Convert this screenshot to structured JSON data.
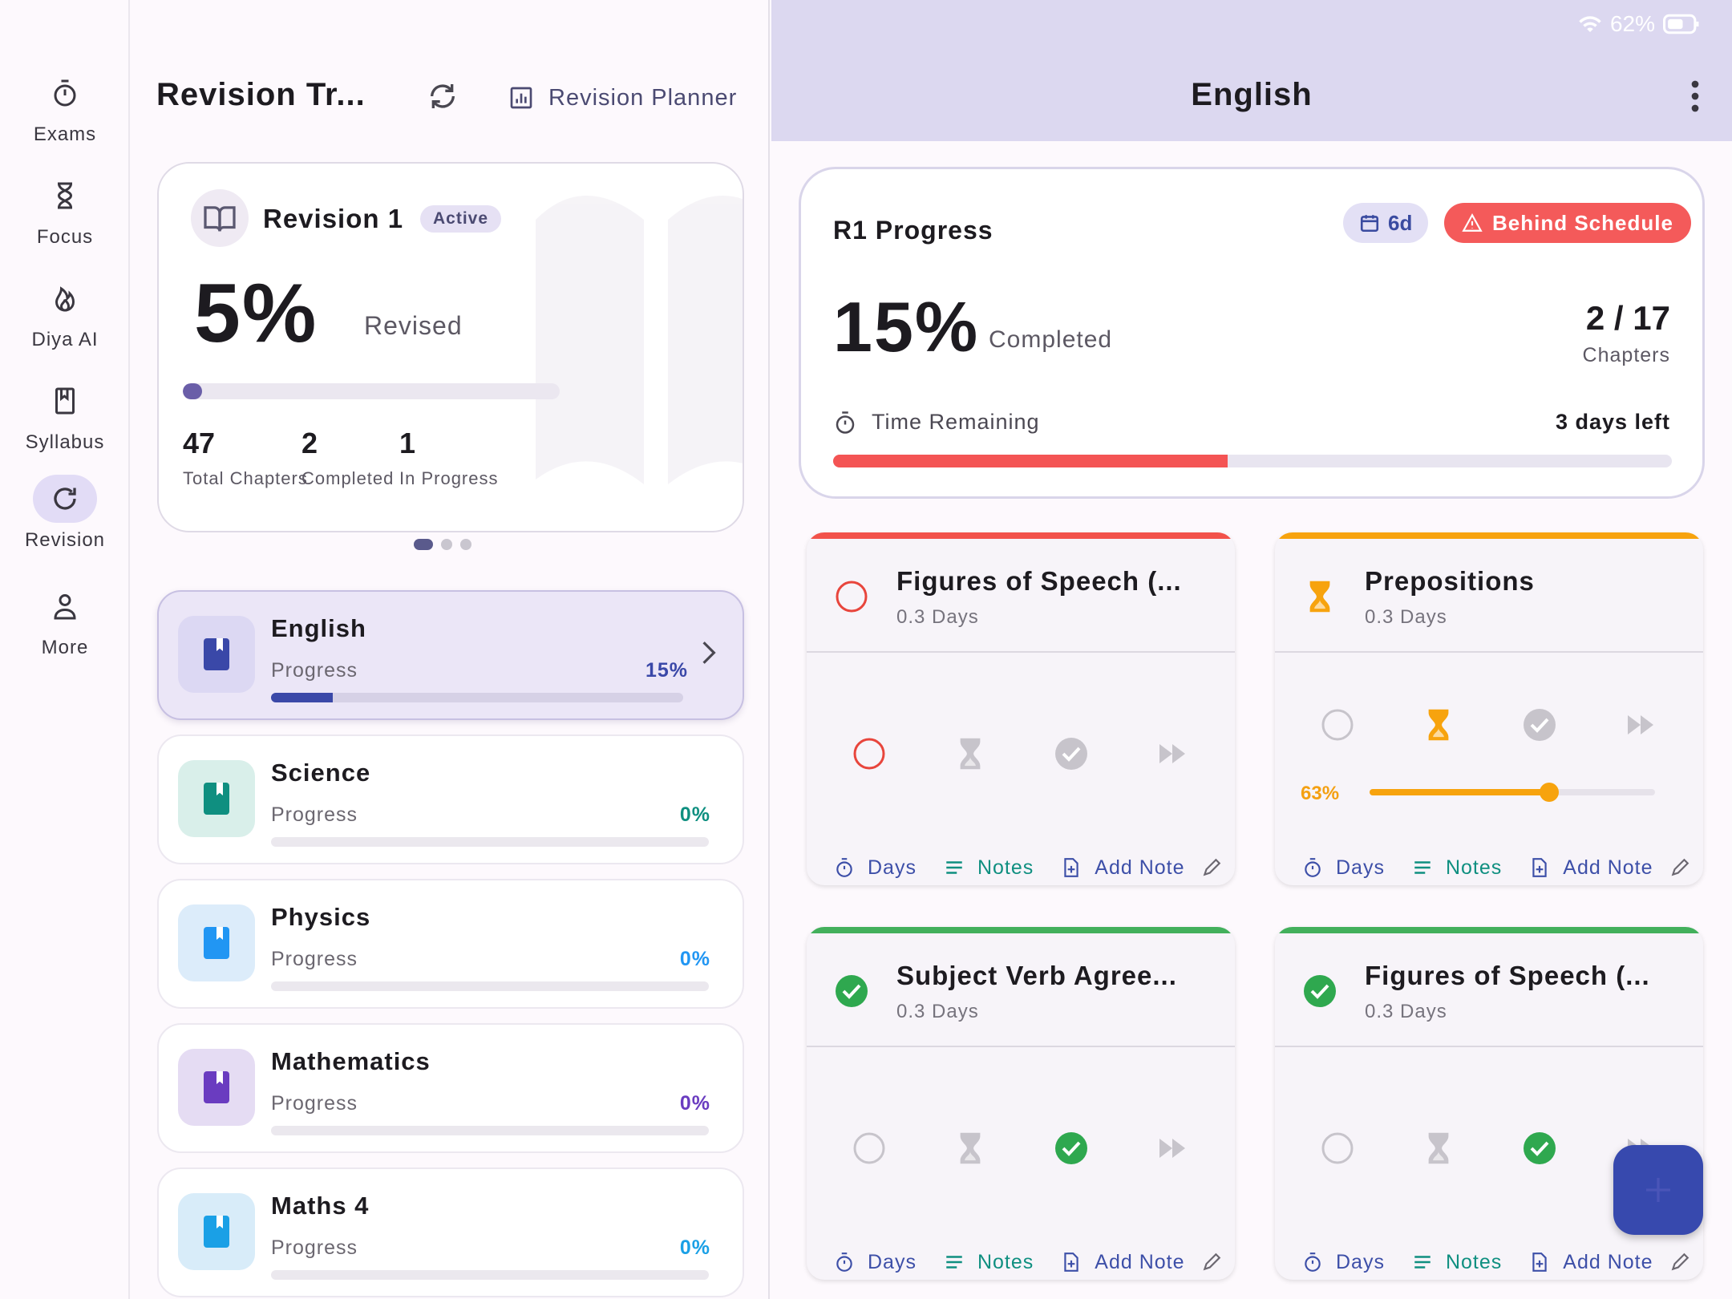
{
  "colors": {
    "accent": "#3749ae",
    "danger": "#f45a5a",
    "warning": "#f7a30e",
    "success": "#2fa84f",
    "teal": "#0f8f80"
  },
  "status": {
    "battery": "62%"
  },
  "rail": [
    {
      "label": "Exams",
      "icon": "stopwatch-icon"
    },
    {
      "label": "Focus",
      "icon": "hourglass-icon"
    },
    {
      "label": "Diya AI",
      "icon": "flame-icon"
    },
    {
      "label": "Syllabus",
      "icon": "bookmark-book-icon"
    },
    {
      "label": "Revision",
      "icon": "refresh-icon",
      "active": true
    },
    {
      "label": "More",
      "icon": "person-icon"
    }
  ],
  "left": {
    "title": "Revision Tr...",
    "planner": "Revision Planner",
    "revision": {
      "name": "Revision 1",
      "badge": "Active",
      "percent": "5%",
      "percent_label": "Revised",
      "progress": 0.05,
      "stats": [
        {
          "value": "47",
          "label": "Total Chapters"
        },
        {
          "value": "2",
          "label": "Completed"
        },
        {
          "value": "1",
          "label": "In Progress"
        }
      ]
    },
    "subjects": [
      {
        "name": "English",
        "label": "Progress",
        "pct": "15%",
        "progress": 0.15,
        "color": "#3a48a8",
        "bg": "#dcd8f3",
        "selected": true
      },
      {
        "name": "Science",
        "label": "Progress",
        "pct": "0%",
        "progress": 0,
        "color": "#0f8f80",
        "bg": "#d9efea"
      },
      {
        "name": "Physics",
        "label": "Progress",
        "pct": "0%",
        "progress": 0,
        "color": "#2196f3",
        "bg": "#dcecfa"
      },
      {
        "name": "Mathematics",
        "label": "Progress",
        "pct": "0%",
        "progress": 0,
        "color": "#6a3cc0",
        "bg": "#e5dcf3"
      },
      {
        "name": "Maths 4",
        "label": "Progress",
        "pct": "0%",
        "progress": 0,
        "color": "#1aa0e6",
        "bg": "#d8ecf9"
      }
    ]
  },
  "right": {
    "title": "English",
    "progress": {
      "title": "R1 Progress",
      "days_chip": "6d",
      "behind": "Behind Schedule",
      "percent": "15%",
      "percent_label": "Completed",
      "chapters": "2 / 17",
      "chapters_label": "Chapters",
      "time_label": "Time Remaining",
      "time_left": "3 days left",
      "time_progress": 0.47
    },
    "footer": {
      "days": "Days",
      "notes": "Notes",
      "add_note": "Add Note"
    },
    "topics": [
      {
        "name": "Figures of Speech (...",
        "days": "0.3 Days",
        "status": "not-started",
        "stripe": "#f2524a"
      },
      {
        "name": "Prepositions",
        "days": "0.3 Days",
        "status": "in-progress",
        "stripe": "#f7a30e",
        "pct": "63%",
        "progress": 0.63
      },
      {
        "name": "Subject Verb Agree...",
        "days": "0.3 Days",
        "status": "completed",
        "stripe": "#43b05c"
      },
      {
        "name": "Figures of Speech (...",
        "days": "0.3 Days",
        "status": "completed",
        "stripe": "#43b05c"
      }
    ]
  }
}
